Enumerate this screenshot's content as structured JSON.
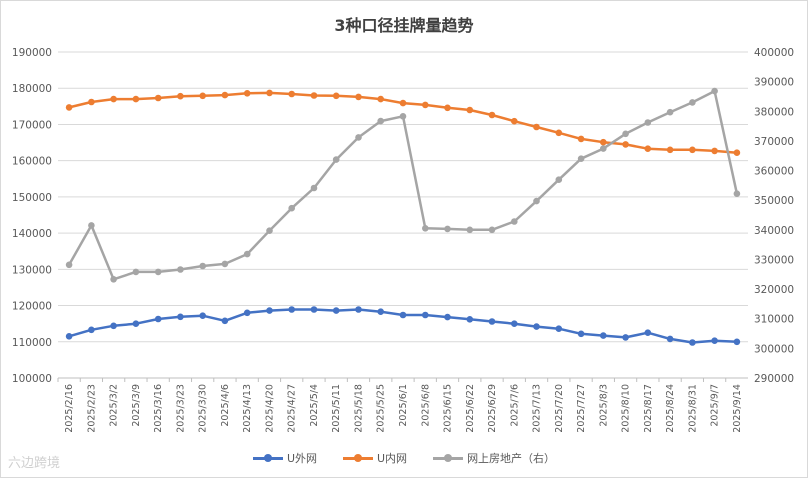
{
  "chart_data": {
    "type": "line",
    "title": "3种口径挂牌量趋势",
    "categories": [
      "2025/2/16",
      "2025/2/23",
      "2025/3/2",
      "2025/3/9",
      "2025/3/16",
      "2025/3/23",
      "2025/3/30",
      "2025/4/6",
      "2025/4/13",
      "2025/4/20",
      "2025/4/27",
      "2025/5/4",
      "2025/5/11",
      "2025/5/18",
      "2025/5/25",
      "2025/6/1",
      "2025/6/8",
      "2025/6/15",
      "2025/6/22",
      "2025/6/29",
      "2025/7/6",
      "2025/7/13",
      "2025/7/20",
      "2025/7/27",
      "2025/8/3",
      "2025/8/10",
      "2025/8/17",
      "2025/8/24",
      "2025/8/31",
      "2025/9/7",
      "2025/9/14"
    ],
    "series": [
      {
        "name": "U外网",
        "axis": "left",
        "color": "#4472c4",
        "values": [
          111500,
          113300,
          114400,
          115000,
          116300,
          116900,
          117200,
          115800,
          118000,
          118600,
          118900,
          118900,
          118600,
          118900,
          118300,
          117400,
          117400,
          116800,
          116200,
          115600,
          115000,
          114200,
          113600,
          112200,
          111700,
          111200,
          112500,
          110800,
          109800,
          110300,
          110000
        ]
      },
      {
        "name": "U内网",
        "axis": "left",
        "color": "#ed7d31",
        "values": [
          174700,
          176200,
          177000,
          177000,
          177300,
          177800,
          177900,
          178100,
          178600,
          178700,
          178400,
          178000,
          177900,
          177600,
          177000,
          175900,
          175400,
          174600,
          174000,
          172600,
          170900,
          169300,
          167700,
          166000,
          165100,
          164500,
          163300,
          163000,
          163000,
          162700,
          162200
        ]
      },
      {
        "name": "网上房地产（右）",
        "axis": "right",
        "color": "#a5a5a5",
        "values": [
          328200,
          341500,
          323300,
          325800,
          325800,
          326600,
          327800,
          328500,
          331800,
          339700,
          347300,
          354100,
          363700,
          371200,
          376700,
          378300,
          340500,
          340300,
          340000,
          340000,
          342800,
          349700,
          356900,
          364000,
          367400,
          372400,
          376200,
          379700,
          383000,
          386800,
          352200
        ]
      }
    ],
    "yLeft": {
      "min": 100000,
      "max": 190000,
      "step": 10000,
      "ticks": [
        "100000",
        "110000",
        "120000",
        "130000",
        "140000",
        "150000",
        "160000",
        "170000",
        "180000",
        "190000"
      ]
    },
    "yRight": {
      "min": 290000,
      "max": 400000,
      "step": 10000,
      "ticks": [
        "290000",
        "300000",
        "310000",
        "320000",
        "330000",
        "340000",
        "350000",
        "360000",
        "370000",
        "380000",
        "390000",
        "400000"
      ]
    },
    "grid": true,
    "legend_position": "bottom"
  },
  "watermark": "六边跨境"
}
